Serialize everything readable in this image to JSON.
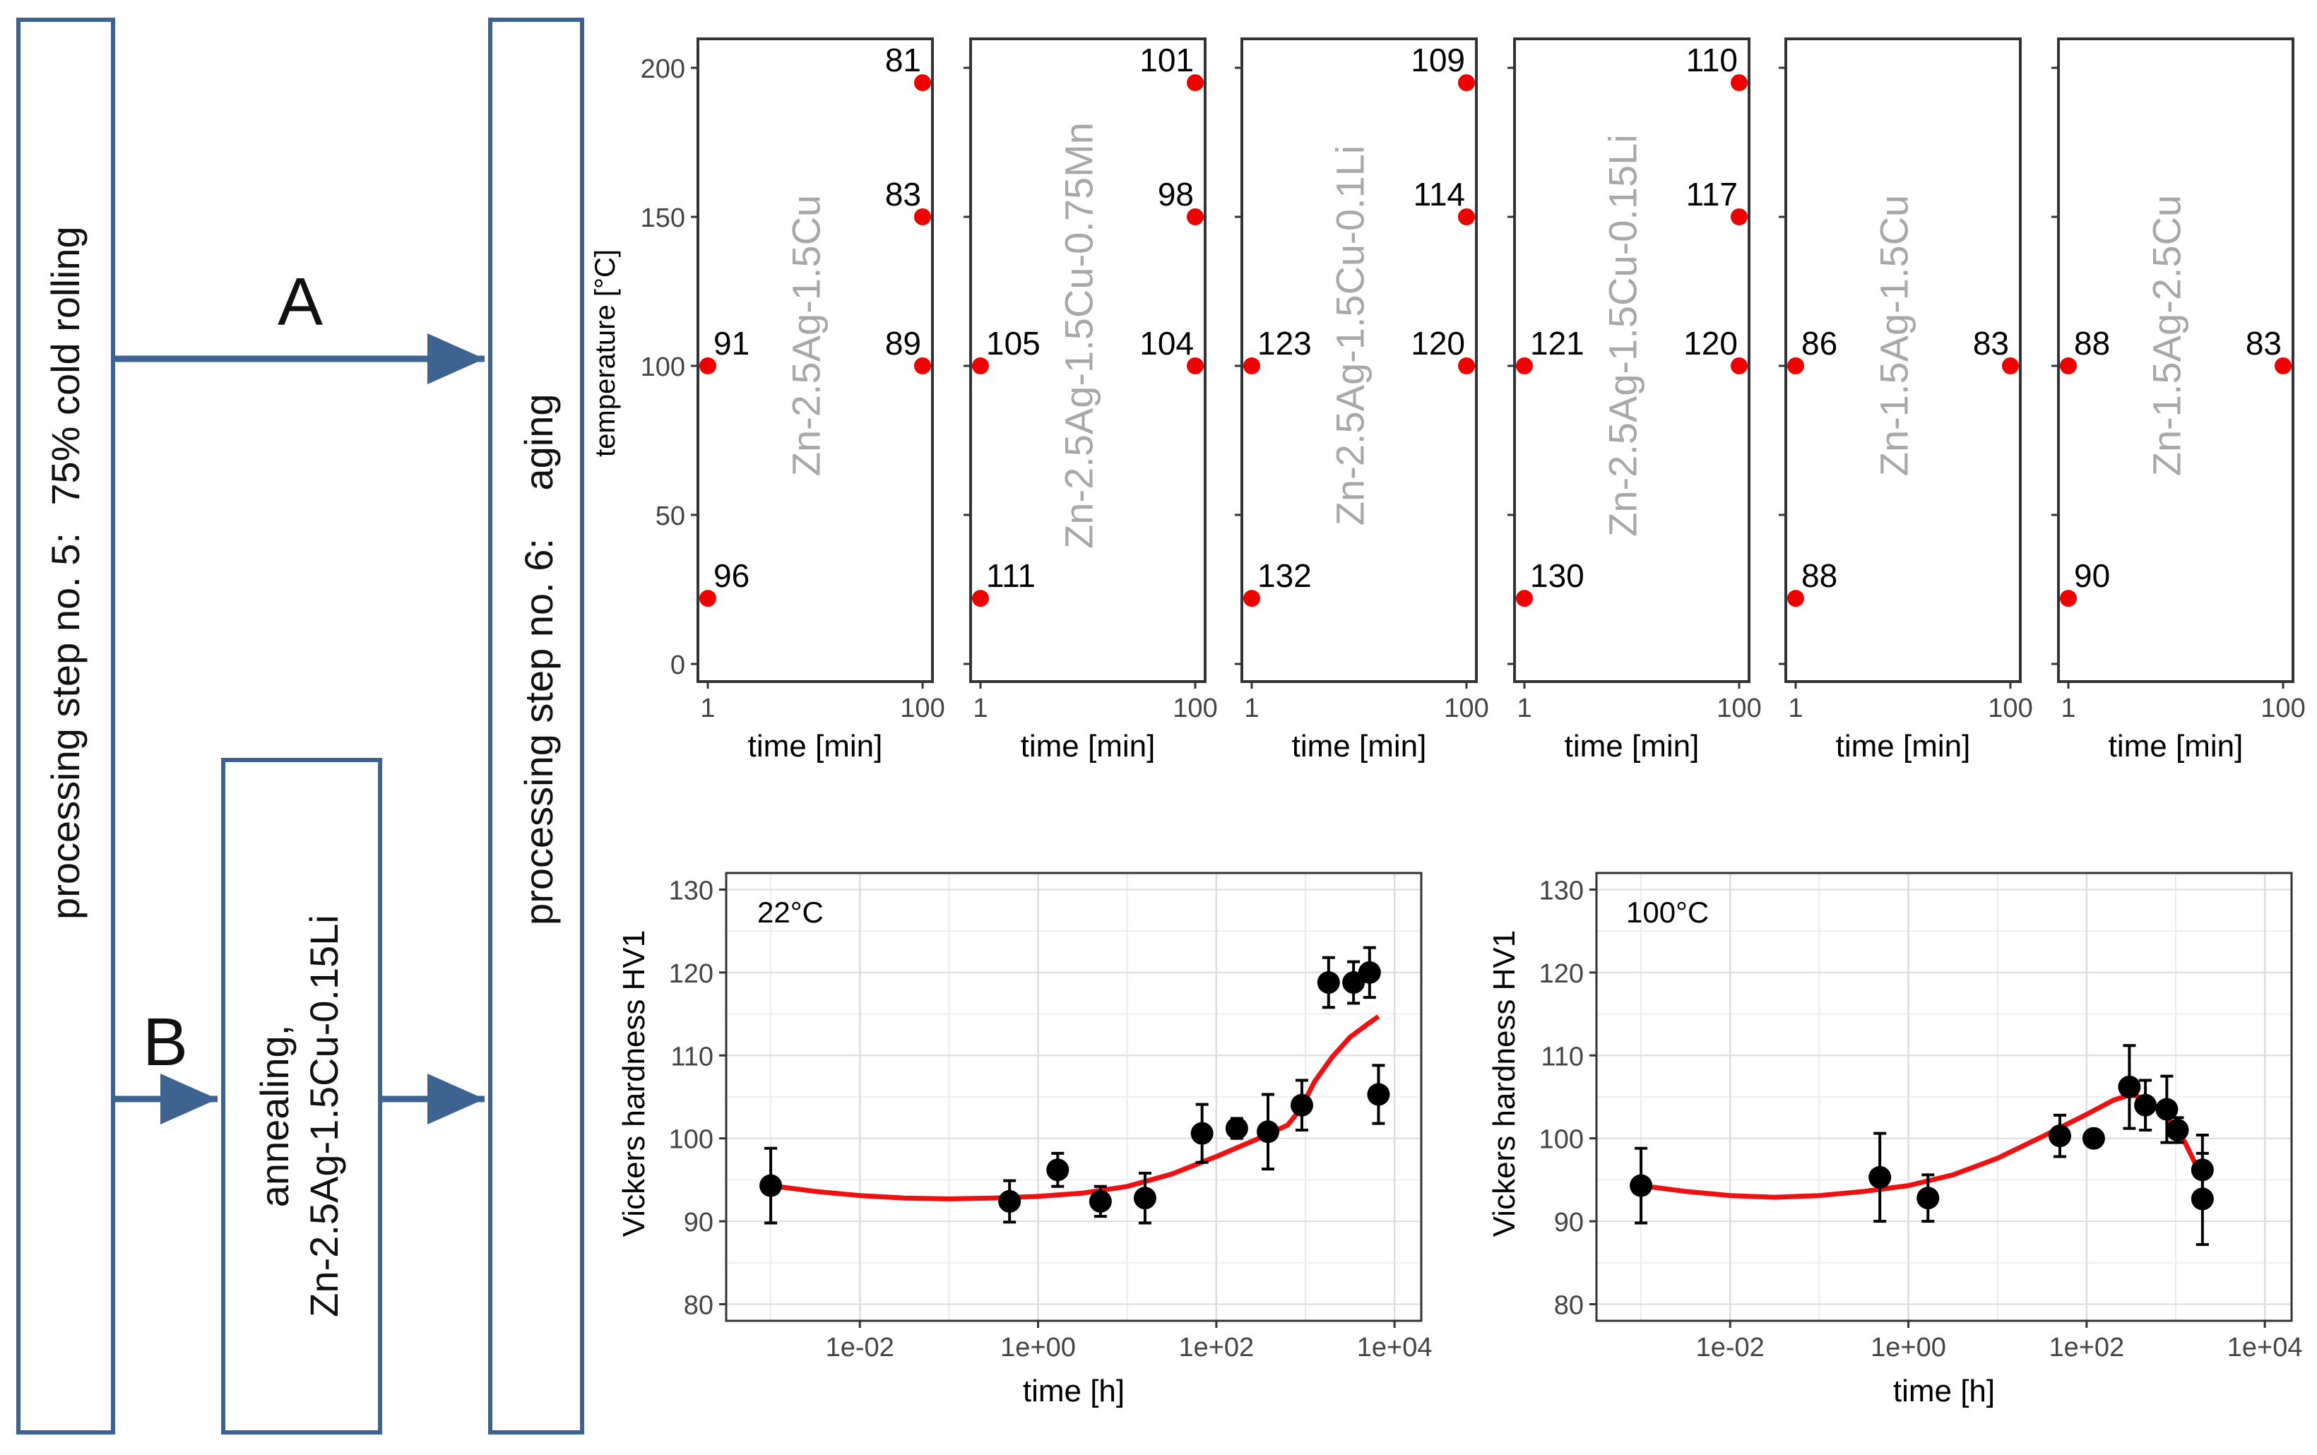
{
  "flow": {
    "step5_label": "processing step no. 5:",
    "step5_op": "75% cold rolling",
    "annealing_label": "annealing,",
    "annealing_alloy": "Zn-2.5Ag-1.5Cu-0.15Li",
    "step6_label": "processing step no. 6:",
    "step6_op": "aging",
    "route_a": "A",
    "route_b": "B",
    "box_color": "#3f6391",
    "arrow_color": "#3f6391"
  },
  "chart_data": [
    {
      "type": "scatter",
      "ylabel": "temperature [°C]",
      "xlabel": "time [min]",
      "x_scale": "log",
      "xlim": [
        1,
        100
      ],
      "ylim": [
        0,
        200
      ],
      "x_ticks": [
        "1",
        "100"
      ],
      "y_ticks": [
        "0",
        "50",
        "100",
        "150",
        "200"
      ],
      "point_color": "#ee0000",
      "panels": [
        {
          "alloy": "Zn-2.5Ag-1.5Cu",
          "points": [
            {
              "t": 1,
              "T": 22,
              "hv": "96"
            },
            {
              "t": 1,
              "T": 100,
              "hv": "91"
            },
            {
              "t": 100,
              "T": 100,
              "hv": "89"
            },
            {
              "t": 100,
              "T": 150,
              "hv": "83"
            },
            {
              "t": 100,
              "T": 195,
              "hv": "81"
            }
          ]
        },
        {
          "alloy": "Zn-2.5Ag-1.5Cu-0.75Mn",
          "points": [
            {
              "t": 1,
              "T": 22,
              "hv": "111"
            },
            {
              "t": 1,
              "T": 100,
              "hv": "105"
            },
            {
              "t": 100,
              "T": 100,
              "hv": "104"
            },
            {
              "t": 100,
              "T": 150,
              "hv": "98"
            },
            {
              "t": 100,
              "T": 195,
              "hv": "101"
            }
          ]
        },
        {
          "alloy": "Zn-2.5Ag-1.5Cu-0.1Li",
          "points": [
            {
              "t": 1,
              "T": 22,
              "hv": "132"
            },
            {
              "t": 1,
              "T": 100,
              "hv": "123"
            },
            {
              "t": 100,
              "T": 100,
              "hv": "120"
            },
            {
              "t": 100,
              "T": 150,
              "hv": "114"
            },
            {
              "t": 100,
              "T": 195,
              "hv": "109"
            }
          ]
        },
        {
          "alloy": "Zn-2.5Ag-1.5Cu-0.15Li",
          "points": [
            {
              "t": 1,
              "T": 22,
              "hv": "130"
            },
            {
              "t": 1,
              "T": 100,
              "hv": "121"
            },
            {
              "t": 100,
              "T": 100,
              "hv": "120"
            },
            {
              "t": 100,
              "T": 150,
              "hv": "117"
            },
            {
              "t": 100,
              "T": 195,
              "hv": "110"
            }
          ]
        },
        {
          "alloy": "Zn-1.5Ag-1.5Cu",
          "points": [
            {
              "t": 1,
              "T": 22,
              "hv": "88"
            },
            {
              "t": 1,
              "T": 100,
              "hv": "86"
            },
            {
              "t": 100,
              "T": 100,
              "hv": "83"
            }
          ]
        },
        {
          "alloy": "Zn-1.5Ag-2.5Cu",
          "points": [
            {
              "t": 1,
              "T": 22,
              "hv": "90"
            },
            {
              "t": 1,
              "T": 100,
              "hv": "88"
            },
            {
              "t": 100,
              "T": 100,
              "hv": "83"
            }
          ]
        }
      ]
    },
    {
      "type": "scatter",
      "annotation": "22°C",
      "ylabel": "Vickers hardness HV1",
      "xlabel": "time [h]",
      "x_scale": "log",
      "xlim_log10": [
        -3.5,
        4.3
      ],
      "ylim": [
        78,
        132
      ],
      "x_ticks": [
        {
          "v": -2,
          "label": "1e-02"
        },
        {
          "v": 0,
          "label": "1e+00"
        },
        {
          "v": 2,
          "label": "1e+02"
        },
        {
          "v": 4,
          "label": "1e+04"
        }
      ],
      "y_ticks": [
        80,
        90,
        100,
        110,
        120,
        130
      ],
      "grid": true,
      "point_color": "#000000",
      "fit_color": "#ee1111",
      "points": [
        {
          "lx": -3.0,
          "y": 94.3,
          "err": 4.5
        },
        {
          "lx": -0.32,
          "y": 92.4,
          "err": 2.5
        },
        {
          "lx": 0.22,
          "y": 96.2,
          "err": 2.0
        },
        {
          "lx": 0.7,
          "y": 92.4,
          "err": 1.8
        },
        {
          "lx": 1.2,
          "y": 92.8,
          "err": 3.0
        },
        {
          "lx": 1.84,
          "y": 100.6,
          "err": 3.5
        },
        {
          "lx": 2.23,
          "y": 101.2,
          "err": 1.2
        },
        {
          "lx": 2.58,
          "y": 100.8,
          "err": 4.5
        },
        {
          "lx": 2.96,
          "y": 104.0,
          "err": 3.0
        },
        {
          "lx": 3.26,
          "y": 118.8,
          "err": 3.0
        },
        {
          "lx": 3.54,
          "y": 118.8,
          "err": 2.5
        },
        {
          "lx": 3.72,
          "y": 120.0,
          "err": 3.0
        },
        {
          "lx": 3.82,
          "y": 105.3,
          "err": 3.5
        }
      ],
      "fit": [
        [
          -3.0,
          94.3
        ],
        [
          -2.5,
          93.6
        ],
        [
          -2.0,
          93.1
        ],
        [
          -1.5,
          92.8
        ],
        [
          -1.0,
          92.7
        ],
        [
          -0.5,
          92.8
        ],
        [
          0.0,
          93.0
        ],
        [
          0.5,
          93.4
        ],
        [
          1.0,
          94.2
        ],
        [
          1.5,
          95.7
        ],
        [
          2.0,
          97.8
        ],
        [
          2.5,
          100.1
        ],
        [
          2.8,
          101.6
        ],
        [
          2.95,
          103.6
        ],
        [
          3.1,
          106.8
        ],
        [
          3.3,
          109.8
        ],
        [
          3.5,
          112.2
        ],
        [
          3.7,
          113.8
        ],
        [
          3.82,
          114.7
        ]
      ]
    },
    {
      "type": "scatter",
      "annotation": "100°C",
      "ylabel": "Vickers hardness HV1",
      "xlabel": "time [h]",
      "x_scale": "log",
      "xlim_log10": [
        -3.5,
        4.3
      ],
      "ylim": [
        78,
        132
      ],
      "x_ticks": [
        {
          "v": -2,
          "label": "1e-02"
        },
        {
          "v": 0,
          "label": "1e+00"
        },
        {
          "v": 2,
          "label": "1e+02"
        },
        {
          "v": 4,
          "label": "1e+04"
        }
      ],
      "y_ticks": [
        80,
        90,
        100,
        110,
        120,
        130
      ],
      "grid": true,
      "point_color": "#000000",
      "fit_color": "#ee1111",
      "points": [
        {
          "lx": -3.0,
          "y": 94.3,
          "err": 4.5
        },
        {
          "lx": -0.32,
          "y": 95.3,
          "err": 5.3
        },
        {
          "lx": 0.22,
          "y": 92.8,
          "err": 2.8
        },
        {
          "lx": 1.7,
          "y": 100.3,
          "err": 2.5
        },
        {
          "lx": 2.08,
          "y": 100.0,
          "err": 0.5
        },
        {
          "lx": 2.48,
          "y": 106.2,
          "err": 5.0
        },
        {
          "lx": 2.66,
          "y": 104.0,
          "err": 3.0
        },
        {
          "lx": 2.9,
          "y": 103.5,
          "err": 4.0
        },
        {
          "lx": 3.02,
          "y": 101.0,
          "err": 1.5
        },
        {
          "lx": 3.3,
          "y": 96.2,
          "err": 4.2
        },
        {
          "lx": 3.3,
          "y": 92.7,
          "err": 5.5
        }
      ],
      "fit": [
        [
          -3.0,
          94.3
        ],
        [
          -2.5,
          93.6
        ],
        [
          -2.0,
          93.1
        ],
        [
          -1.5,
          92.9
        ],
        [
          -1.0,
          93.1
        ],
        [
          -0.5,
          93.6
        ],
        [
          0.0,
          94.3
        ],
        [
          0.5,
          95.6
        ],
        [
          1.0,
          97.6
        ],
        [
          1.5,
          100.2
        ],
        [
          2.0,
          102.9
        ],
        [
          2.3,
          104.6
        ],
        [
          2.5,
          105.3
        ],
        [
          2.7,
          104.6
        ],
        [
          2.9,
          102.6
        ],
        [
          3.1,
          99.6
        ],
        [
          3.3,
          95.2
        ]
      ]
    }
  ]
}
